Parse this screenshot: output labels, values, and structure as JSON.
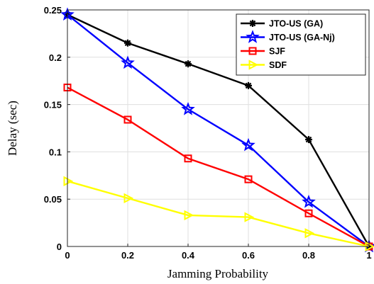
{
  "chart_data": {
    "type": "line",
    "xlabel": "Jamming Probability",
    "ylabel": "Delay (sec)",
    "xlim": [
      0,
      1
    ],
    "ylim": [
      0,
      0.25
    ],
    "xticks": [
      "0",
      "0.2",
      "0.4",
      "0.6",
      "0.8",
      "1"
    ],
    "yticks": [
      "0",
      "0.05",
      "0.1",
      "0.15",
      "0.2",
      "0.25"
    ],
    "grid": true,
    "legend_position": "top-right",
    "x": [
      0,
      0.2,
      0.4,
      0.6,
      0.8,
      1
    ],
    "series": [
      {
        "name": "JTO-US (GA)",
        "color": "#000000",
        "marker": "star",
        "values": [
          0.245,
          0.215,
          0.193,
          0.17,
          0.113,
          0.0
        ]
      },
      {
        "name": "JTO-US (GA-Nj)",
        "color": "#0000ff",
        "marker": "pentagram",
        "values": [
          0.245,
          0.194,
          0.145,
          0.107,
          0.047,
          0.0
        ]
      },
      {
        "name": "SJF",
        "color": "#ff0000",
        "marker": "square",
        "values": [
          0.168,
          0.134,
          0.093,
          0.071,
          0.035,
          0.0
        ]
      },
      {
        "name": "SDF",
        "color": "#ffff00",
        "marker": "triangle-right",
        "values": [
          0.069,
          0.051,
          0.033,
          0.031,
          0.014,
          0.0
        ]
      }
    ]
  }
}
